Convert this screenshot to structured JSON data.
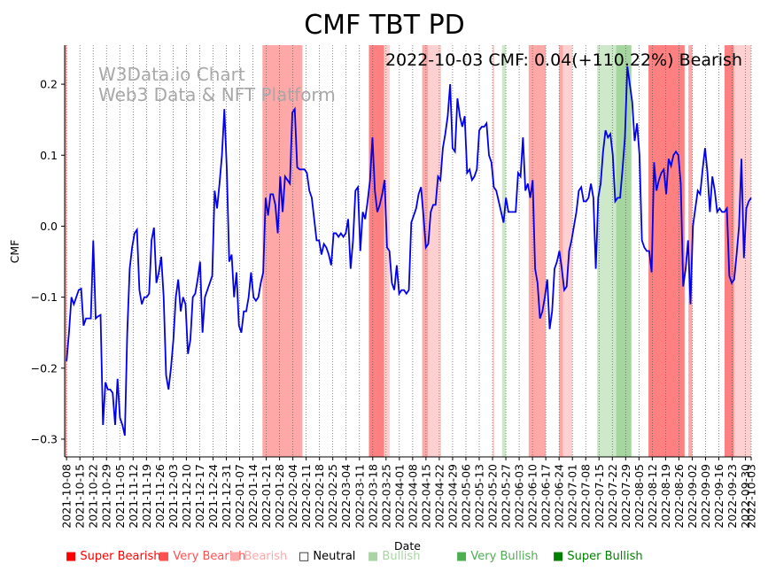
{
  "chart_data": {
    "type": "line",
    "title": "CMF TBT PD",
    "annotation": "2022-10-03 CMF: 0.04(+110.22%) Bearish",
    "watermark": [
      "W3Data.io Chart",
      "Web3 Data & NFT Platform"
    ],
    "xlabel": "Date",
    "ylabel": "CMF",
    "x_start": "2021-10-08",
    "x_end": "2022-10-03",
    "xlim": [
      "2021-10-07",
      "2022-10-03"
    ],
    "ylim": [
      -0.325,
      0.255
    ],
    "yticks": [
      -0.3,
      -0.2,
      -0.1,
      0.0,
      0.1,
      0.2
    ],
    "ytick_labels": [
      "−0.3",
      "−0.2",
      "−0.1",
      "0.0",
      "0.1",
      "0.2"
    ],
    "xtick_labels": [
      "2021-10-08",
      "2021-10-15",
      "2021-10-22",
      "2021-10-29",
      "2021-11-05",
      "2021-11-12",
      "2021-11-19",
      "2021-11-26",
      "2021-12-03",
      "2021-12-10",
      "2021-12-17",
      "2021-12-24",
      "2021-12-31",
      "2022-01-07",
      "2022-01-14",
      "2022-01-21",
      "2022-01-28",
      "2022-02-04",
      "2022-02-11",
      "2022-02-18",
      "2022-02-25",
      "2022-03-04",
      "2022-03-11",
      "2022-03-18",
      "2022-03-25",
      "2022-04-01",
      "2022-04-08",
      "2022-04-15",
      "2022-04-22",
      "2022-04-29",
      "2022-05-06",
      "2022-05-13",
      "2022-05-20",
      "2022-05-27",
      "2022-06-03",
      "2022-06-10",
      "2022-06-17",
      "2022-06-24",
      "2022-07-01",
      "2022-07-08",
      "2022-07-15",
      "2022-07-22",
      "2022-07-29",
      "2022-08-05",
      "2022-08-12",
      "2022-08-19",
      "2022-08-26",
      "2022-09-02",
      "2022-09-09",
      "2022-09-16",
      "2022-09-23",
      "2022-09-30",
      "2022-10-03"
    ],
    "grid": "vertical dotted",
    "legend_position": "bottom",
    "series": [
      {
        "color": "#0000ee",
        "values": [
          -0.19,
          -0.15,
          -0.1,
          -0.11,
          -0.1,
          -0.09,
          -0.088,
          -0.14,
          -0.13,
          -0.13,
          -0.13,
          -0.02,
          -0.13,
          -0.127,
          -0.125,
          -0.28,
          -0.22,
          -0.23,
          -0.23,
          -0.235,
          -0.28,
          -0.215,
          -0.27,
          -0.28,
          -0.295,
          -0.15,
          -0.06,
          -0.03,
          -0.01,
          -0.005,
          -0.09,
          -0.11,
          -0.1,
          -0.1,
          -0.095,
          -0.02,
          -0.002,
          -0.08,
          -0.065,
          -0.043,
          -0.1,
          -0.21,
          -0.23,
          -0.2,
          -0.16,
          -0.1,
          -0.075,
          -0.12,
          -0.1,
          -0.11,
          -0.18,
          -0.16,
          -0.1,
          -0.095,
          -0.075,
          -0.05,
          -0.15,
          -0.1,
          -0.09,
          -0.08,
          -0.07,
          0.05,
          0.025,
          0.06,
          0.1,
          0.165,
          0.08,
          -0.05,
          -0.04,
          -0.1,
          -0.065,
          -0.14,
          -0.15,
          -0.12,
          -0.12,
          -0.1,
          -0.065,
          -0.1,
          -0.105,
          -0.1,
          -0.08,
          -0.065,
          0.04,
          0.015,
          0.045,
          0.045,
          0.03,
          -0.01,
          0.07,
          0.02,
          0.07,
          0.065,
          0.06,
          0.16,
          0.165,
          0.083,
          0.08,
          0.08,
          0.08,
          0.075,
          0.05,
          0.04,
          0.01,
          -0.02,
          -0.02,
          -0.04,
          -0.025,
          -0.03,
          -0.04,
          -0.055,
          -0.01,
          -0.01,
          -0.015,
          -0.01,
          -0.015,
          -0.01,
          0.01,
          -0.06,
          -0.02,
          0.05,
          0.055,
          -0.035,
          0.02,
          0.01,
          0.035,
          0.065,
          0.125,
          0.05,
          0.02,
          0.03,
          0.045,
          0.065,
          -0.03,
          -0.035,
          -0.08,
          -0.09,
          -0.055,
          -0.095,
          -0.09,
          -0.09,
          -0.095,
          -0.09,
          0.005,
          0.015,
          0.025,
          0.045,
          0.055,
          0.015,
          -0.03,
          -0.025,
          0.02,
          0.03,
          0.03,
          0.07,
          0.065,
          0.11,
          0.13,
          0.155,
          0.2,
          0.11,
          0.105,
          0.18,
          0.155,
          0.14,
          0.155,
          0.075,
          0.08,
          0.065,
          0.07,
          0.08,
          0.135,
          0.14,
          0.14,
          0.145,
          0.1,
          0.09,
          0.055,
          0.05,
          0.035,
          0.02,
          0.005,
          0.04,
          0.02,
          0.02,
          0.02,
          0.02,
          0.075,
          0.07,
          0.125,
          0.05,
          0.06,
          0.04,
          0.065,
          -0.06,
          -0.08,
          -0.13,
          -0.12,
          -0.1,
          -0.075,
          -0.145,
          -0.12,
          -0.06,
          -0.05,
          -0.035,
          -0.06,
          -0.09,
          -0.085,
          -0.035,
          -0.02,
          0.0,
          0.02,
          0.05,
          0.055,
          0.035,
          0.035,
          0.04,
          0.06,
          0.04,
          -0.06,
          0.04,
          0.06,
          0.105,
          0.135,
          0.125,
          0.13,
          0.1,
          0.035,
          0.04,
          0.04,
          0.08,
          0.125,
          0.225,
          0.2,
          0.175,
          0.12,
          0.145,
          0.1,
          -0.02,
          -0.03,
          -0.035,
          -0.035,
          -0.065,
          0.09,
          0.05,
          0.065,
          0.075,
          0.08,
          0.045,
          0.095,
          0.085,
          0.1,
          0.105,
          0.1,
          0.06,
          -0.085,
          -0.06,
          -0.02,
          -0.11,
          0.0,
          0.025,
          0.05,
          0.045,
          0.08,
          0.11,
          0.075,
          0.02,
          0.07,
          0.05,
          0.02,
          0.025,
          0.02,
          0.02,
          0.025,
          -0.07,
          -0.08,
          -0.075,
          -0.04,
          0.0,
          0.095,
          -0.045,
          0.025,
          0.035,
          0.04
        ]
      }
    ],
    "regions": [
      {
        "from": "2021-10-07",
        "to": "2021-10-08",
        "level": "super_bearish"
      },
      {
        "from": "2022-01-19",
        "to": "2022-02-09",
        "level": "bearish_mid"
      },
      {
        "from": "2022-03-16",
        "to": "2022-03-24",
        "level": "very_bearish"
      },
      {
        "from": "2022-03-24",
        "to": "2022-03-27",
        "level": "bearish"
      },
      {
        "from": "2022-04-13",
        "to": "2022-04-16",
        "level": "bearish_mid"
      },
      {
        "from": "2022-04-16",
        "to": "2022-04-23",
        "level": "bearish"
      },
      {
        "from": "2022-05-20",
        "to": "2022-05-21",
        "level": "bearish"
      },
      {
        "from": "2022-05-25",
        "to": "2022-05-27",
        "level": "bullish"
      },
      {
        "from": "2022-06-08",
        "to": "2022-06-17",
        "level": "bearish_mid"
      },
      {
        "from": "2022-06-24",
        "to": "2022-06-26",
        "level": "bearish_mid"
      },
      {
        "from": "2022-06-26",
        "to": "2022-07-01",
        "level": "bearish"
      },
      {
        "from": "2022-07-14",
        "to": "2022-07-24",
        "level": "bullish"
      },
      {
        "from": "2022-07-24",
        "to": "2022-08-01",
        "level": "very_bullish"
      },
      {
        "from": "2022-08-10",
        "to": "2022-08-29",
        "level": "very_bearish"
      },
      {
        "from": "2022-08-31",
        "to": "2022-09-02",
        "level": "bearish_mid"
      },
      {
        "from": "2022-09-19",
        "to": "2022-09-24",
        "level": "very_bearish"
      },
      {
        "from": "2022-09-24",
        "to": "2022-10-03",
        "level": "bearish"
      }
    ],
    "region_colors": {
      "super_bearish": "#ff9999",
      "very_bearish": "#ff8080",
      "bearish_mid": "#ffa8a8",
      "bearish": "#ffd0d0",
      "bullish": "#cde9c9",
      "very_bullish": "#a5d6a0"
    },
    "legend": [
      {
        "label": "Super Bearish",
        "color": "#ff0000",
        "symbol": "■"
      },
      {
        "label": "Very Bearish",
        "color": "#ff5050",
        "symbol": "■"
      },
      {
        "label": "Bearish",
        "color": "#ffaaaa",
        "symbol": "■"
      },
      {
        "label": "Neutral",
        "color": "#000000",
        "symbol": "□"
      },
      {
        "label": "Bullish",
        "color": "#aad4a5",
        "symbol": "■"
      },
      {
        "label": "Very Bullish",
        "color": "#4caf50",
        "symbol": "■"
      },
      {
        "label": "Super Bullish",
        "color": "#008000",
        "symbol": "■"
      }
    ]
  }
}
